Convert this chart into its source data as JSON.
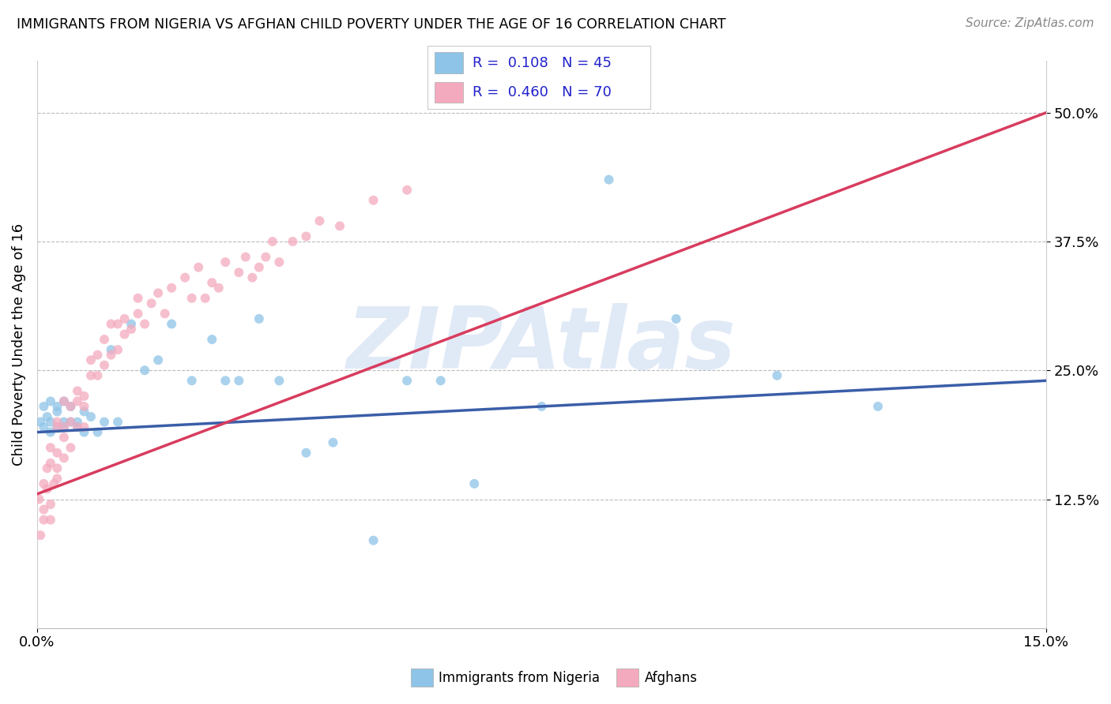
{
  "title": "IMMIGRANTS FROM NIGERIA VS AFGHAN CHILD POVERTY UNDER THE AGE OF 16 CORRELATION CHART",
  "source": "Source: ZipAtlas.com",
  "ylabel": "Child Poverty Under the Age of 16",
  "xlim": [
    0.0,
    0.15
  ],
  "ylim": [
    0.0,
    0.55
  ],
  "xtick_labels": [
    "0.0%",
    "15.0%"
  ],
  "ytick_vals": [
    0.125,
    0.25,
    0.375,
    0.5
  ],
  "ytick_labels": [
    "12.5%",
    "25.0%",
    "37.5%",
    "50.0%"
  ],
  "blue_color": "#8EC4E8",
  "pink_color": "#F4AABE",
  "blue_line_color": "#3A5EA8",
  "pink_line_color": "#D83C5E",
  "watermark": "ZIPAtlas",
  "watermark_color": "#C8D8F0",
  "legend_text_color": "#2222CC",
  "R1": 0.108,
  "N1": 45,
  "R2": 0.46,
  "N2": 70,
  "blue_scatter_x": [
    0.0005,
    0.001,
    0.001,
    0.0015,
    0.002,
    0.002,
    0.002,
    0.003,
    0.003,
    0.003,
    0.004,
    0.004,
    0.004,
    0.005,
    0.005,
    0.006,
    0.006,
    0.007,
    0.007,
    0.008,
    0.009,
    0.01,
    0.011,
    0.012,
    0.014,
    0.016,
    0.018,
    0.02,
    0.023,
    0.026,
    0.028,
    0.03,
    0.033,
    0.036,
    0.04,
    0.044,
    0.05,
    0.055,
    0.06,
    0.065,
    0.075,
    0.085,
    0.095,
    0.11,
    0.125
  ],
  "blue_scatter_y": [
    0.2,
    0.215,
    0.195,
    0.205,
    0.19,
    0.22,
    0.2,
    0.195,
    0.21,
    0.215,
    0.2,
    0.22,
    0.195,
    0.2,
    0.215,
    0.195,
    0.2,
    0.21,
    0.19,
    0.205,
    0.19,
    0.2,
    0.27,
    0.2,
    0.295,
    0.25,
    0.26,
    0.295,
    0.24,
    0.28,
    0.24,
    0.24,
    0.3,
    0.24,
    0.17,
    0.18,
    0.085,
    0.24,
    0.24,
    0.14,
    0.215,
    0.435,
    0.3,
    0.245,
    0.215
  ],
  "pink_scatter_x": [
    0.0003,
    0.0005,
    0.001,
    0.001,
    0.001,
    0.0015,
    0.0015,
    0.002,
    0.002,
    0.002,
    0.002,
    0.0025,
    0.003,
    0.003,
    0.003,
    0.003,
    0.003,
    0.004,
    0.004,
    0.004,
    0.004,
    0.005,
    0.005,
    0.005,
    0.006,
    0.006,
    0.006,
    0.007,
    0.007,
    0.007,
    0.008,
    0.008,
    0.009,
    0.009,
    0.01,
    0.01,
    0.011,
    0.011,
    0.012,
    0.012,
    0.013,
    0.013,
    0.014,
    0.015,
    0.015,
    0.016,
    0.017,
    0.018,
    0.019,
    0.02,
    0.022,
    0.023,
    0.024,
    0.025,
    0.026,
    0.027,
    0.028,
    0.03,
    0.031,
    0.032,
    0.033,
    0.034,
    0.035,
    0.036,
    0.038,
    0.04,
    0.042,
    0.045,
    0.05,
    0.055
  ],
  "pink_scatter_y": [
    0.125,
    0.09,
    0.105,
    0.14,
    0.115,
    0.135,
    0.155,
    0.12,
    0.105,
    0.16,
    0.175,
    0.14,
    0.155,
    0.17,
    0.145,
    0.195,
    0.2,
    0.185,
    0.22,
    0.165,
    0.195,
    0.2,
    0.175,
    0.215,
    0.22,
    0.195,
    0.23,
    0.215,
    0.225,
    0.195,
    0.245,
    0.26,
    0.245,
    0.265,
    0.255,
    0.28,
    0.265,
    0.295,
    0.27,
    0.295,
    0.285,
    0.3,
    0.29,
    0.305,
    0.32,
    0.295,
    0.315,
    0.325,
    0.305,
    0.33,
    0.34,
    0.32,
    0.35,
    0.32,
    0.335,
    0.33,
    0.355,
    0.345,
    0.36,
    0.34,
    0.35,
    0.36,
    0.375,
    0.355,
    0.375,
    0.38,
    0.395,
    0.39,
    0.415,
    0.425
  ]
}
